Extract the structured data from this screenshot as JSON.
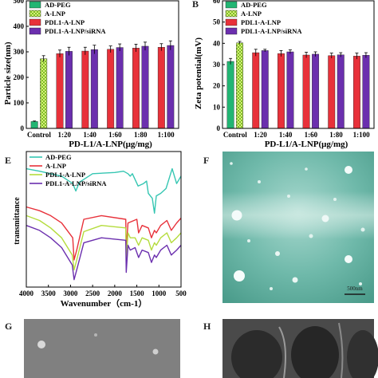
{
  "figure": {
    "panel_letters": {
      "b": "B",
      "e": "E",
      "f": "F",
      "g": "G",
      "h": "H"
    },
    "scale_bar_label": "500nm"
  },
  "chart_data": [
    {
      "id": "A",
      "type": "bar",
      "title": "",
      "ylabel": "Particle size(nm)",
      "xlabel": "PD-L1/A-LNP(μg/mg)",
      "ylim": [
        0,
        500
      ],
      "yticks": [
        "0",
        "100",
        "200",
        "300",
        "400",
        "500"
      ],
      "categories": [
        "Control",
        "1:20",
        "1:40",
        "1:60",
        "1:80",
        "1:100"
      ],
      "series": [
        {
          "name": "AD-PEG",
          "color": "#22b573",
          "values": [
            27,
            null,
            null,
            null,
            null,
            null
          ]
        },
        {
          "name": "A-LNP",
          "color": "#9cd33a",
          "pattern": "checker",
          "values": [
            273,
            null,
            null,
            null,
            null,
            null
          ]
        },
        {
          "name": "PDL1-A-LNP",
          "color": "#e8313a",
          "values": [
            null,
            293,
            303,
            310,
            315,
            318
          ]
        },
        {
          "name": "PDL1-A-LNP/siRNA",
          "color": "#6b2fae",
          "values": [
            null,
            302,
            309,
            317,
            322,
            325
          ]
        }
      ],
      "errors": [
        [
          2,
          null,
          null,
          null,
          null,
          null
        ],
        [
          12,
          null,
          null,
          null,
          null,
          null
        ],
        [
          null,
          14,
          15,
          13,
          15,
          14
        ],
        [
          null,
          16,
          17,
          14,
          16,
          18
        ]
      ],
      "legend": "top-left"
    },
    {
      "id": "B",
      "type": "bar",
      "title": "",
      "ylabel": "Zeta potential(mV)",
      "xlabel": "PD-L1/A-LNP(μg/mg)",
      "ylim": [
        0,
        60
      ],
      "yticks": [
        "0",
        "10",
        "20",
        "30",
        "40",
        "50",
        "60"
      ],
      "categories": [
        "Control",
        "1:20",
        "1:40",
        "1:60",
        "1:80",
        "1:100"
      ],
      "series": [
        {
          "name": "AD-PEG",
          "color": "#22b573",
          "values": [
            31.5,
            null,
            null,
            null,
            null,
            null
          ]
        },
        {
          "name": "A-LNP",
          "color": "#9cd33a",
          "pattern": "checker",
          "values": [
            40.2,
            null,
            null,
            null,
            null,
            null
          ]
        },
        {
          "name": "PDL1-A-LNP",
          "color": "#e8313a",
          "values": [
            null,
            35.6,
            35.2,
            34.5,
            34.2,
            34.0
          ]
        },
        {
          "name": "PDL1-A-LNP/siRNA",
          "color": "#6b2fae",
          "values": [
            null,
            36.6,
            36.0,
            34.9,
            34.6,
            34.4
          ]
        }
      ],
      "errors": [
        [
          1.4,
          null,
          null,
          null,
          null,
          null
        ],
        [
          0.7,
          null,
          null,
          null,
          null,
          null
        ],
        [
          null,
          1.6,
          1.4,
          1.3,
          1.2,
          1.4
        ],
        [
          null,
          0.6,
          0.9,
          1.1,
          1.0,
          1.2
        ]
      ],
      "legend": "top-left"
    },
    {
      "id": "E",
      "type": "line",
      "title": "",
      "ylabel": "transmittance",
      "xlabel": "Wavenumber（cm-1）",
      "xlim": [
        4000,
        500
      ],
      "xticks": [
        "4000",
        "3500",
        "3000",
        "2500",
        "2000",
        "1500",
        "1000",
        "500"
      ],
      "series": [
        {
          "name": "AD-PEG",
          "color": "#35c6b2",
          "x": [
            4000,
            3700,
            3450,
            3200,
            2950,
            2880,
            2800,
            2500,
            2000,
            1800,
            1700,
            1650,
            1600,
            1470,
            1350,
            1280,
            1240,
            1150,
            1100,
            1060,
            960,
            840,
            700,
            600,
            500
          ],
          "y": [
            0.86,
            0.84,
            0.82,
            0.8,
            0.74,
            0.68,
            0.75,
            0.82,
            0.83,
            0.84,
            0.82,
            0.8,
            0.82,
            0.72,
            0.74,
            0.76,
            0.66,
            0.62,
            0.5,
            0.64,
            0.66,
            0.7,
            0.86,
            0.74,
            0.8
          ]
        },
        {
          "name": "A-LNP",
          "color": "#e8313a",
          "x": [
            4000,
            3700,
            3450,
            3200,
            2950,
            2920,
            2860,
            2700,
            2300,
            1750,
            1740,
            1700,
            1500,
            1460,
            1380,
            1240,
            1170,
            1100,
            1060,
            960,
            820,
            720,
            600,
            500
          ],
          "y": [
            0.55,
            0.52,
            0.48,
            0.42,
            0.3,
            0.12,
            0.2,
            0.45,
            0.48,
            0.45,
            0.2,
            0.42,
            0.45,
            0.34,
            0.4,
            0.38,
            0.3,
            0.36,
            0.34,
            0.4,
            0.44,
            0.36,
            0.42,
            0.46
          ]
        },
        {
          "name": "PDL1-A-LNP",
          "color": "#b4dc3c",
          "x": [
            4000,
            3700,
            3450,
            3200,
            2960,
            2920,
            2860,
            2700,
            2300,
            1750,
            1740,
            1700,
            1650,
            1540,
            1460,
            1380,
            1240,
            1170,
            1100,
            1060,
            960,
            820,
            720,
            600,
            500
          ],
          "y": [
            0.48,
            0.44,
            0.38,
            0.3,
            0.16,
            0.04,
            0.12,
            0.35,
            0.4,
            0.38,
            0.12,
            0.34,
            0.3,
            0.3,
            0.24,
            0.3,
            0.28,
            0.2,
            0.26,
            0.24,
            0.3,
            0.34,
            0.26,
            0.3,
            0.34
          ]
        },
        {
          "name": "PDL1-A-LNP/siRNA",
          "color": "#6b2fae",
          "x": [
            4000,
            3700,
            3450,
            3200,
            2960,
            2920,
            2860,
            2700,
            2300,
            1750,
            1740,
            1700,
            1650,
            1540,
            1460,
            1380,
            1240,
            1170,
            1100,
            1060,
            960,
            820,
            720,
            600,
            500
          ],
          "y": [
            0.4,
            0.36,
            0.3,
            0.22,
            0.08,
            -0.04,
            0.04,
            0.26,
            0.3,
            0.28,
            0.02,
            0.24,
            0.2,
            0.22,
            0.14,
            0.2,
            0.18,
            0.1,
            0.16,
            0.14,
            0.2,
            0.24,
            0.16,
            0.2,
            0.24
          ]
        }
      ],
      "legend": "top-left"
    }
  ]
}
